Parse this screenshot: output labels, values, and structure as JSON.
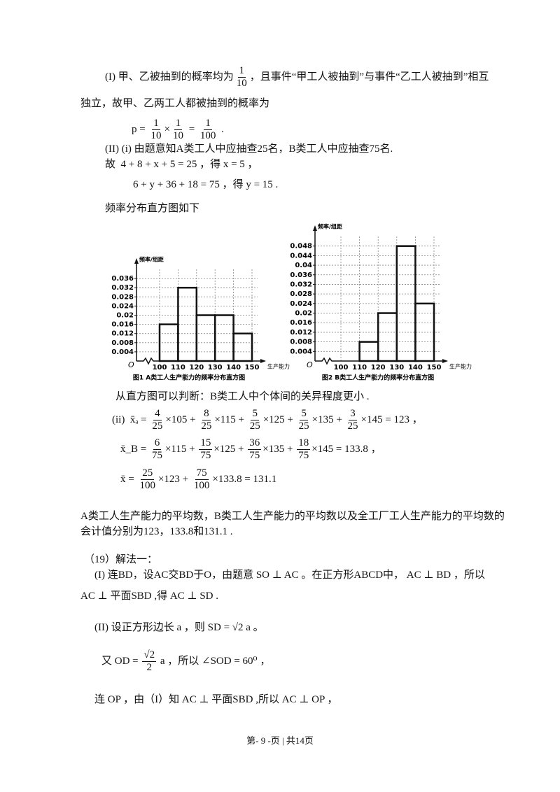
{
  "lines": [
    {
      "parts": [
        "(I) 甲、乙被抽到的概率均为",
        {
          "num": "1",
          "den": "10"
        },
        "，且事件“甲工人被抽到”与事件“乙工人被抽到”相互"
      ]
    },
    {
      "parts": [
        "独立，故甲、乙两工人都被抽到的概率为"
      ]
    },
    {
      "parts": [
        "p = ",
        {
          "num": "1",
          "den": "10"
        },
        "×",
        {
          "num": "1",
          "den": "10"
        },
        " = ",
        {
          "num": "1",
          "den": "100"
        },
        " ."
      ]
    },
    {
      "parts": [
        "(II) (i) 由题意知A类工人中应抽查25名，B类工人中应抽查75名."
      ]
    },
    {
      "parts": [
        "故  4 + 8 + x + 5 = 25 ，得 x = 5 ，"
      ]
    },
    {
      "parts": [
        "6 + y + 36 + 18 = 75 ，得 y = 15 ."
      ]
    },
    {
      "parts": [
        "频率分布直方图如下"
      ]
    },
    {
      "parts": [
        "从直方图可以判断：B类工人中个体间的关异程度更小 ."
      ]
    },
    {
      "parts": [
        "(ii)  x̄ₐ = ",
        {
          "num": "4",
          "den": "25"
        },
        "×105 + ",
        {
          "num": "8",
          "den": "25"
        },
        "×115 + ",
        {
          "num": "5",
          "den": "25"
        },
        "×125 + ",
        {
          "num": "5",
          "den": "25"
        },
        "×135 + ",
        {
          "num": "3",
          "den": "25"
        },
        "×145 = 123 ，"
      ]
    },
    {
      "parts": [
        "x̄_B = ",
        {
          "num": "6",
          "den": "75"
        },
        "×115 + ",
        {
          "num": "15",
          "den": "75"
        },
        "×125 + ",
        {
          "num": "36",
          "den": "75"
        },
        "×135 + ",
        {
          "num": "18",
          "den": "75"
        },
        "×145 = 133.8 ，"
      ]
    },
    {
      "parts": [
        "x̄ = ",
        {
          "num": "25",
          "den": "100"
        },
        "×123 + ",
        {
          "num": "75",
          "den": "100"
        },
        "×133.8 = 131.1"
      ]
    },
    {
      "parts": [
        "A类工人生产能力的平均数，B类工人生产能力的平均数以及全工厂工人生产能力的平均数的"
      ]
    },
    {
      "parts": [
        "会计值分别为123，133.8和131.1 ."
      ]
    },
    {
      "parts": [
        "（19）解法一："
      ]
    },
    {
      "parts": [
        "(I) 连BD，设AC交BD于O，由题意 SO ⊥ AC 。在正方形ABCD中， AC ⊥ BD ，所以"
      ]
    },
    {
      "parts": [
        "AC ⊥ 平面SBD ,得 AC ⊥ SD ."
      ]
    },
    {
      "parts": [
        "(II) 设正方形边长 a ，则 SD = √2 a 。"
      ]
    },
    {
      "parts": [
        "又 OD = ",
        {
          "num": "√2",
          "den": "2"
        },
        " a ，所以 ∠SOD = 60⁰ ，"
      ]
    },
    {
      "parts": [
        "连 OP ，由（I）知 AC ⊥ 平面SBD ,所以 AC ⊥ OP ，"
      ]
    }
  ],
  "footer": "第- 9 -页 | 共14页",
  "chart_data": [
    {
      "type": "histogram",
      "caption": "图1  A类工人生产能力的频率分布直方图",
      "y_label": "频率/组距",
      "x_label": "生产能力",
      "origin": "O",
      "bins": [
        100,
        110,
        120,
        130,
        140,
        150
      ],
      "values": [
        0.016,
        0.032,
        0.02,
        0.02,
        0.012
      ],
      "ylim": [
        0,
        0.04
      ],
      "yticks": [
        0.004,
        0.008,
        0.012,
        0.016,
        0.02,
        0.024,
        0.028,
        0.032,
        0.036
      ],
      "grid": true,
      "color": "#111111"
    },
    {
      "type": "histogram",
      "caption": "图2  B类工人生产能力的频率分布直方图",
      "y_label": "频率/组距",
      "x_label": "生产能力",
      "origin": "O",
      "bins": [
        100,
        110,
        120,
        130,
        140,
        150
      ],
      "values": [
        0,
        0.008,
        0.02,
        0.048,
        0.024
      ],
      "ylim": [
        0,
        0.052
      ],
      "yticks": [
        0.004,
        0.008,
        0.012,
        0.016,
        0.02,
        0.024,
        0.028,
        0.032,
        0.036,
        0.04,
        0.044,
        0.048
      ],
      "grid": true,
      "color": "#111111"
    }
  ]
}
